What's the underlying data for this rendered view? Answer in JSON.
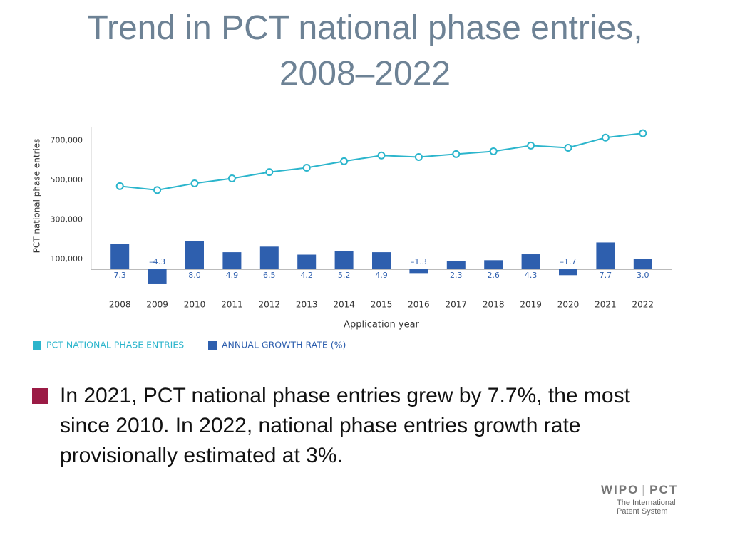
{
  "chart_data": {
    "type": "bar_line",
    "title": "Trend in PCT national phase entries, 2008–2022",
    "y_label": "PCT national phase entries",
    "x_label": "Application year",
    "categories": [
      "2008",
      "2009",
      "2010",
      "2011",
      "2012",
      "2013",
      "2014",
      "2015",
      "2016",
      "2017",
      "2018",
      "2019",
      "2020",
      "2021",
      "2022"
    ],
    "series": [
      {
        "name": "PCT NATIONAL PHASE ENTRIES",
        "type": "line",
        "color": "#2bb5cc",
        "values": [
          470000,
          450000,
          484000,
          509000,
          541000,
          563000,
          596000,
          625000,
          617000,
          632000,
          646000,
          675000,
          664000,
          715000,
          737000
        ]
      },
      {
        "name": "ANNUAL GROWTH RATE (%)",
        "type": "bar",
        "axis": "y2",
        "color": "#2e5fae",
        "values": [
          7.3,
          -4.3,
          8.0,
          4.9,
          6.5,
          4.2,
          5.2,
          4.9,
          -1.3,
          2.3,
          2.6,
          4.3,
          -1.7,
          7.7,
          3.0
        ],
        "value_labels": [
          "7.3",
          "–4.3",
          "8.0",
          "4.9",
          "6.5",
          "4.2",
          "5.2",
          "4.9",
          "–1.3",
          "2.3",
          "2.6",
          "4.3",
          "–1.7",
          "7.7",
          "3.0"
        ]
      }
    ],
    "ylim": [
      50000,
      770000
    ],
    "yticks": [
      {
        "value": 100000,
        "label": "100,000"
      },
      {
        "value": 300000,
        "label": "300,000"
      },
      {
        "value": 500000,
        "label": "500,000"
      },
      {
        "value": 700000,
        "label": "700,000"
      }
    ],
    "y2lim": [
      0,
      41
    ],
    "legend": "bottom-left"
  },
  "body_text": "In 2021, PCT national phase entries grew by 7.7%, the most since 2010. In 2022, national phase entries growth rate provisionally estimated at 3%.",
  "logo": {
    "org": "WIPO",
    "system": "PCT",
    "line1": "The International",
    "line2": "Patent System"
  }
}
